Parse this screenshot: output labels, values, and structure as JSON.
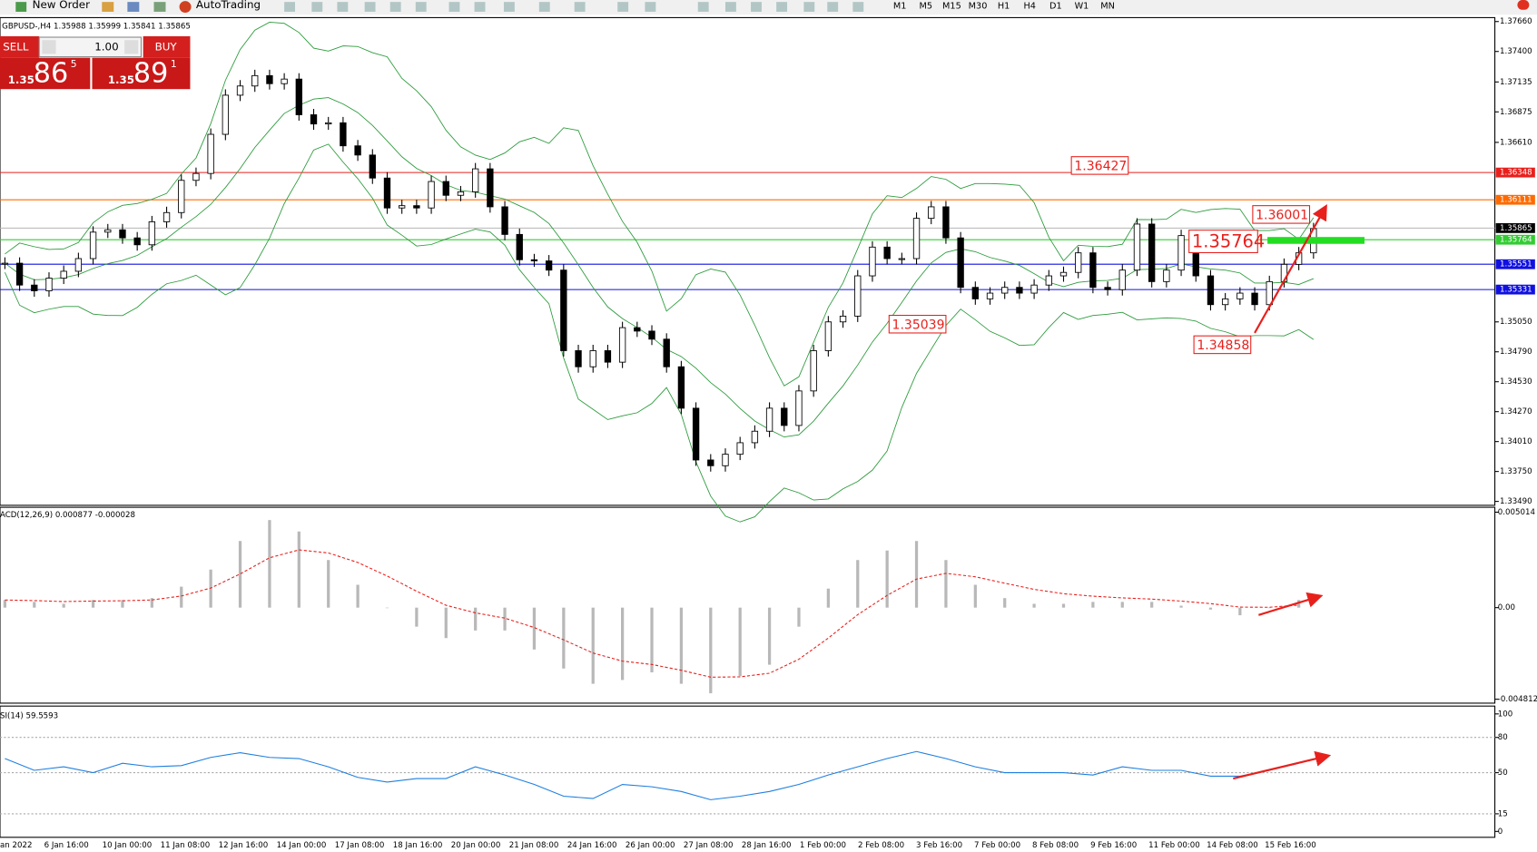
{
  "toolbar": {
    "new_order": "New Order",
    "auto_trading": "AutoTrading",
    "timeframes": [
      "M1",
      "M5",
      "M15",
      "M30",
      "H1",
      "H4",
      "D1",
      "W1",
      "MN"
    ]
  },
  "order_panel": {
    "sell": "SELL",
    "buy": "BUY",
    "lots": "1.00",
    "sell_price": {
      "big": "1.35",
      "main": "86",
      "small": "5"
    },
    "buy_price": {
      "big": "1.35",
      "main": "89",
      "small": "1"
    }
  },
  "chart": {
    "header": "GBPUSD-,H4 1.35988 1.35999 1.35841 1.35865",
    "price_axis": [
      {
        "value": 1.3766,
        "label": "1.37660"
      },
      {
        "value": 1.374,
        "label": "1.37400"
      },
      {
        "value": 1.37135,
        "label": "1.37135"
      },
      {
        "value": 1.36875,
        "label": "1.36875"
      },
      {
        "value": 1.3661,
        "label": "1.36610"
      },
      {
        "value": 1.3505,
        "label": "1.35050"
      },
      {
        "value": 1.3479,
        "label": "1.34790"
      },
      {
        "value": 1.3453,
        "label": "1.34530"
      },
      {
        "value": 1.3427,
        "label": "1.34270"
      },
      {
        "value": 1.3401,
        "label": "1.34010"
      },
      {
        "value": 1.3375,
        "label": "1.33750"
      },
      {
        "value": 1.3349,
        "label": "1.33490"
      }
    ],
    "levels": [
      {
        "value": 1.36348,
        "label": "1.36348",
        "color": "#e8201c"
      },
      {
        "value": 1.36111,
        "label": "1.36111",
        "color": "#ff6a00"
      },
      {
        "value": 1.35865,
        "label": "1.35865",
        "color": "#b4b4b4",
        "label_color": "#000000"
      },
      {
        "value": 1.35764,
        "label": "1.35764",
        "color": "#33cc33"
      },
      {
        "value": 1.35551,
        "label": "1.35551",
        "color": "#1010e0"
      },
      {
        "value": 1.35331,
        "label": "1.35331",
        "color": "#1010e0"
      }
    ],
    "annotations": [
      "1.36427",
      "1.36001",
      "1.35764",
      "1.35039",
      "1.34858"
    ],
    "closes": [
      1.3556,
      1.3537,
      1.3532,
      1.3543,
      1.3549,
      1.356,
      1.3583,
      1.3585,
      1.3578,
      1.3572,
      1.3592,
      1.36,
      1.3628,
      1.3634,
      1.3668,
      1.3702,
      1.371,
      1.3719,
      1.3712,
      1.3716,
      1.3685,
      1.3677,
      1.3678,
      1.3658,
      1.365,
      1.363,
      1.3604,
      1.3606,
      1.3604,
      1.3627,
      1.3615,
      1.3618,
      1.3638,
      1.3605,
      1.3581,
      1.3559,
      1.3558,
      1.355,
      1.348,
      1.3466,
      1.348,
      1.347,
      1.35,
      1.3497,
      1.349,
      1.3466,
      1.343,
      1.3385,
      1.338,
      1.339,
      1.34,
      1.341,
      1.343,
      1.3415,
      1.3445,
      1.348,
      1.3505,
      1.351,
      1.3545,
      1.357,
      1.356,
      1.356,
      1.3595,
      1.3605,
      1.3578,
      1.3535,
      1.3525,
      1.353,
      1.3535,
      1.353,
      1.3537,
      1.3545,
      1.3548,
      1.3565,
      1.3535,
      1.3533,
      1.355,
      1.359,
      1.354,
      1.355,
      1.358,
      1.3545,
      1.352,
      1.3525,
      1.353,
      1.352,
      1.354,
      1.3555,
      1.3565,
      1.3586
    ],
    "macd": {
      "header": "ACD(12,26,9) 0.000877 -0.000028",
      "ticks": [
        {
          "value": 0.005014,
          "label": "0.005014"
        },
        {
          "value": 0,
          "label": "0.00"
        },
        {
          "value": -0.004812,
          "label": "-0.004812"
        }
      ],
      "values": [
        0.0004,
        0.0003,
        0.0002,
        0.0004,
        0.0004,
        0.0005,
        0.0011,
        0.002,
        0.0035,
        0.0046,
        0.004,
        0.0025,
        0.0012,
        0,
        -0.001,
        -0.0016,
        -0.0012,
        -0.0012,
        -0.0022,
        -0.0032,
        -0.004,
        -0.0038,
        -0.0034,
        -0.004,
        -0.0045,
        -0.0036,
        -0.003,
        -0.001,
        0.001,
        0.0025,
        0.003,
        0.0035,
        0.0025,
        0.0012,
        0.0005,
        0.0002,
        0.0002,
        0.0003,
        0.0003,
        0.0003,
        0.0001,
        -0.0001,
        -0.0004,
        0,
        0.0004
      ]
    },
    "rsi": {
      "header": "SI(14) 59.5593",
      "ticks": [
        100,
        80,
        50,
        15,
        0
      ],
      "values": [
        62,
        52,
        55,
        50,
        58,
        55,
        56,
        63,
        67,
        63,
        62,
        55,
        46,
        42,
        45,
        45,
        55,
        48,
        40,
        30,
        28,
        40,
        38,
        34,
        27,
        30,
        34,
        40,
        48,
        55,
        62,
        68,
        62,
        55,
        50,
        50,
        50,
        48,
        55,
        52,
        52,
        47,
        47,
        52,
        58
      ]
    },
    "time_axis": [
      "an 2022",
      "6 Jan 16:00",
      "10 Jan 00:00",
      "11 Jan 08:00",
      "12 Jan 16:00",
      "14 Jan 00:00",
      "17 Jan 08:00",
      "18 Jan 16:00",
      "20 Jan 00:00",
      "21 Jan 08:00",
      "24 Jan 16:00",
      "26 Jan 00:00",
      "27 Jan 08:00",
      "28 Jan 16:00",
      "1 Feb 00:00",
      "2 Feb 08:00",
      "3 Feb 16:00",
      "7 Feb 00:00",
      "8 Feb 08:00",
      "9 Feb 16:00",
      "11 Feb 00:00",
      "14 Feb 08:00",
      "15 Feb 16:00"
    ]
  }
}
